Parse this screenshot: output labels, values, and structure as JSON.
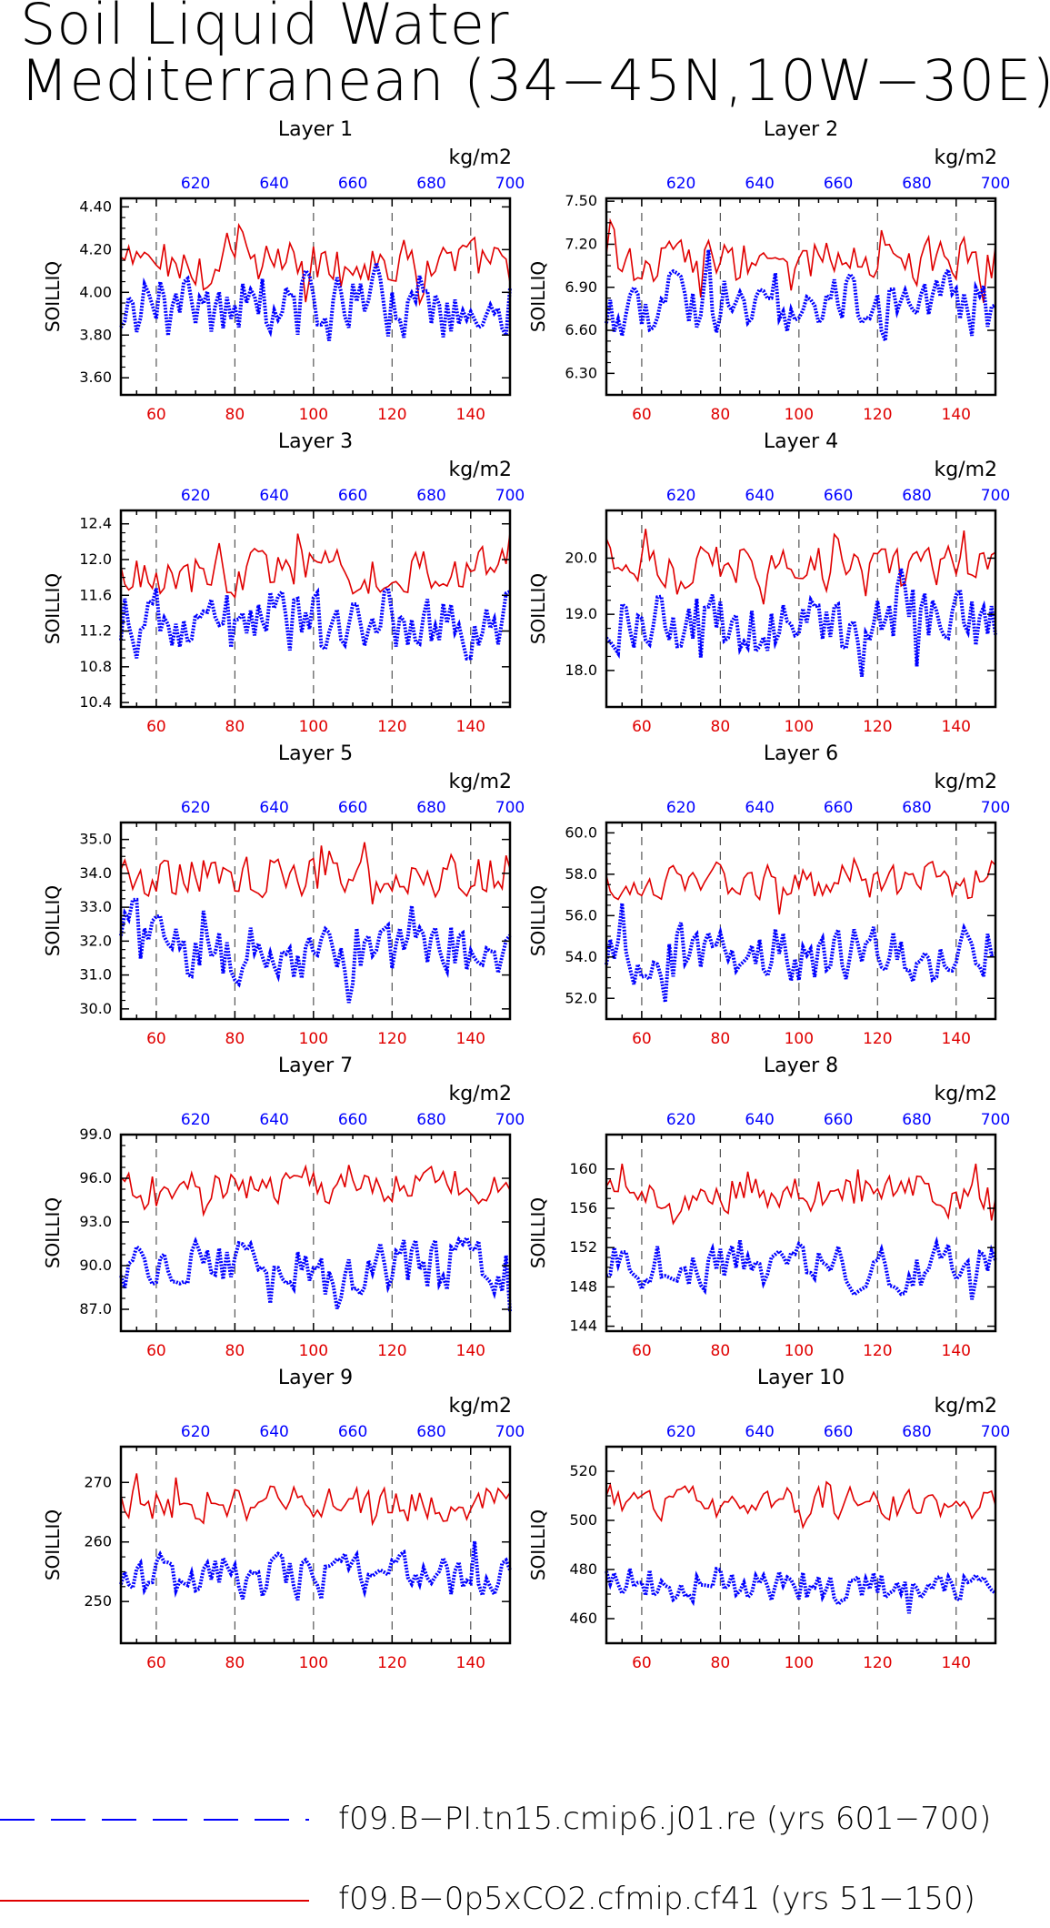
{
  "title": {
    "line1": "Soil Liquid Water",
    "line2": "Mediterranean (34−45N,10W−30E)"
  },
  "axes_common": {
    "ylabel": "SOILLIQ",
    "top_unit": "kg/m2",
    "bottom_ticks": [
      "60",
      "80",
      "100",
      "120",
      "140"
    ],
    "top_ticks": [
      "620",
      "640",
      "660",
      "680",
      "700"
    ],
    "bottom_range": [
      51,
      150
    ],
    "top_range": [
      601,
      700
    ],
    "bottom_axis_color": "#e00000",
    "top_axis_color": "#0000ff",
    "vertical_dashed_gridlines_at": [
      60,
      80,
      100,
      120,
      140
    ]
  },
  "legend": {
    "entries": [
      {
        "label": "f09.B−PI.tn15.cmip6.j01.re (yrs 601−700)",
        "color": "#0000ff",
        "style": "dashed"
      },
      {
        "label": "f09.B−0p5xCO2.cfmip.cf41 (yrs 51−150)",
        "color": "#e00000",
        "style": "solid"
      }
    ]
  },
  "chart_data": [
    {
      "type": "line",
      "title": "Layer 1",
      "ylabel": "SOILLIQ",
      "yticks": [
        "3.60",
        "3.80",
        "4.00",
        "4.20",
        "4.40"
      ],
      "ylim": [
        3.52,
        4.44
      ],
      "red_mean": 4.14,
      "red_amp": 0.12,
      "blue_mean": 3.93,
      "blue_amp": 0.17,
      "xlim": [
        51,
        150
      ],
      "series": [
        {
          "name": "f09.B−0p5xCO2.cfmip.cf41 (yrs 51−150)",
          "color": "#e00000",
          "x_axis": "bottom"
        },
        {
          "name": "f09.B−PI.tn15.cmip6.j01.re (yrs 601−700)",
          "color": "#0000ff",
          "x_axis": "top"
        }
      ]
    },
    {
      "type": "line",
      "title": "Layer 2",
      "ylabel": "SOILLIQ",
      "yticks": [
        "6.30",
        "6.60",
        "6.90",
        "7.20",
        "7.50"
      ],
      "ylim": [
        6.15,
        7.52
      ],
      "red_mean": 7.08,
      "red_amp": 0.18,
      "blue_mean": 6.78,
      "blue_amp": 0.25,
      "xlim": [
        51,
        150
      ],
      "series": [
        {
          "name": "f09.B−0p5xCO2.cfmip.cf41 (yrs 51−150)",
          "color": "#e00000",
          "x_axis": "bottom"
        },
        {
          "name": "f09.B−PI.tn15.cmip6.j01.re (yrs 601−700)",
          "color": "#0000ff",
          "x_axis": "top"
        }
      ]
    },
    {
      "type": "line",
      "title": "Layer 3",
      "ylabel": "SOILLIQ",
      "yticks": [
        "10.4",
        "10.8",
        "11.2",
        "11.6",
        "12.0",
        "12.4"
      ],
      "ylim": [
        10.35,
        12.55
      ],
      "red_mean": 11.85,
      "red_amp": 0.28,
      "blue_mean": 11.3,
      "blue_amp": 0.42,
      "xlim": [
        51,
        150
      ],
      "series": [
        {
          "name": "f09.B−0p5xCO2.cfmip.cf41 (yrs 51−150)",
          "color": "#e00000",
          "x_axis": "bottom"
        },
        {
          "name": "f09.B−PI.tn15.cmip6.j01.re (yrs 601−700)",
          "color": "#0000ff",
          "x_axis": "top"
        }
      ]
    },
    {
      "type": "line",
      "title": "Layer 4",
      "ylabel": "SOILLIQ",
      "yticks": [
        "18.0",
        "19.0",
        "20.0"
      ],
      "ylim": [
        17.35,
        20.85
      ],
      "red_mean": 19.85,
      "red_amp": 0.42,
      "blue_mean": 18.85,
      "blue_amp": 0.6,
      "xlim": [
        51,
        150
      ],
      "series": [
        {
          "name": "f09.B−0p5xCO2.cfmip.cf41 (yrs 51−150)",
          "color": "#e00000",
          "x_axis": "bottom"
        },
        {
          "name": "f09.B−PI.tn15.cmip6.j01.re (yrs 601−700)",
          "color": "#0000ff",
          "x_axis": "top"
        }
      ]
    },
    {
      "type": "line",
      "title": "Layer 5",
      "ylabel": "SOILLIQ",
      "yticks": [
        "30.0",
        "31.0",
        "32.0",
        "33.0",
        "34.0",
        "35.0"
      ],
      "ylim": [
        29.7,
        35.5
      ],
      "red_mean": 33.9,
      "red_amp": 0.7,
      "blue_mean": 31.7,
      "blue_amp": 0.95,
      "xlim": [
        51,
        150
      ],
      "series": [
        {
          "name": "f09.B−0p5xCO2.cfmip.cf41 (yrs 51−150)",
          "color": "#e00000",
          "x_axis": "bottom"
        },
        {
          "name": "f09.B−PI.tn15.cmip6.j01.re (yrs 601−700)",
          "color": "#0000ff",
          "x_axis": "top"
        }
      ]
    },
    {
      "type": "line",
      "title": "Layer 6",
      "ylabel": "SOILLIQ",
      "yticks": [
        "52.0",
        "54.0",
        "56.0",
        "58.0",
        "60.0"
      ],
      "ylim": [
        51.0,
        60.5
      ],
      "red_mean": 57.6,
      "red_amp": 1.0,
      "blue_mean": 54.2,
      "blue_amp": 1.5,
      "xlim": [
        51,
        150
      ],
      "series": [
        {
          "name": "f09.B−0p5xCO2.cfmip.cf41 (yrs 51−150)",
          "color": "#e00000",
          "x_axis": "bottom"
        },
        {
          "name": "f09.B−PI.tn15.cmip6.j01.re (yrs 601−700)",
          "color": "#0000ff",
          "x_axis": "top"
        }
      ]
    },
    {
      "type": "line",
      "title": "Layer 7",
      "ylabel": "SOILLIQ",
      "yticks": [
        "87.0",
        "90.0",
        "93.0",
        "96.0",
        "99.0"
      ],
      "ylim": [
        85.5,
        99.0
      ],
      "red_mean": 95.6,
      "red_amp": 1.3,
      "blue_mean": 90.0,
      "blue_amp": 2.0,
      "xlim": [
        51,
        150
      ],
      "series": [
        {
          "name": "f09.B−0p5xCO2.cfmip.cf41 (yrs 51−150)",
          "color": "#e00000",
          "x_axis": "bottom"
        },
        {
          "name": "f09.B−PI.tn15.cmip6.j01.re (yrs 601−700)",
          "color": "#0000ff",
          "x_axis": "top"
        }
      ]
    },
    {
      "type": "line",
      "title": "Layer 8",
      "ylabel": "SOILLIQ",
      "yticks": [
        "144",
        "148",
        "152",
        "156",
        "160"
      ],
      "ylim": [
        143.5,
        163.5
      ],
      "red_mean": 157.5,
      "red_amp": 1.9,
      "blue_mean": 150.0,
      "blue_amp": 2.7,
      "xlim": [
        51,
        150
      ],
      "series": [
        {
          "name": "f09.B−0p5xCO2.cfmip.cf41 (yrs 51−150)",
          "color": "#e00000",
          "x_axis": "bottom"
        },
        {
          "name": "f09.B−PI.tn15.cmip6.j01.re (yrs 601−700)",
          "color": "#0000ff",
          "x_axis": "top"
        }
      ]
    },
    {
      "type": "line",
      "title": "Layer 9",
      "ylabel": "SOILLIQ",
      "yticks": [
        "250",
        "260",
        "270"
      ],
      "ylim": [
        243,
        276
      ],
      "red_mean": 266.5,
      "red_amp": 3.2,
      "blue_mean": 254.0,
      "blue_amp": 4.0,
      "xlim": [
        51,
        150
      ],
      "series": [
        {
          "name": "f09.B−0p5xCO2.cfmip.cf41 (yrs 51−150)",
          "color": "#e00000",
          "x_axis": "bottom"
        },
        {
          "name": "f09.B−PI.tn15.cmip6.j01.re (yrs 601−700)",
          "color": "#0000ff",
          "x_axis": "top"
        }
      ]
    },
    {
      "type": "line",
      "title": "Layer 10",
      "ylabel": "SOILLIQ",
      "yticks": [
        "460",
        "480",
        "500",
        "520"
      ],
      "ylim": [
        450,
        530
      ],
      "red_mean": 507.0,
      "red_amp": 7.0,
      "blue_mean": 474.0,
      "blue_amp": 8.0,
      "xlim": [
        51,
        150
      ],
      "series": [
        {
          "name": "f09.B−0p5xCO2.cfmip.cf41 (yrs 51−150)",
          "color": "#e00000",
          "x_axis": "bottom"
        },
        {
          "name": "f09.B−PI.tn15.cmip6.j01.re (yrs 601−700)",
          "color": "#0000ff",
          "x_axis": "top"
        }
      ]
    }
  ]
}
